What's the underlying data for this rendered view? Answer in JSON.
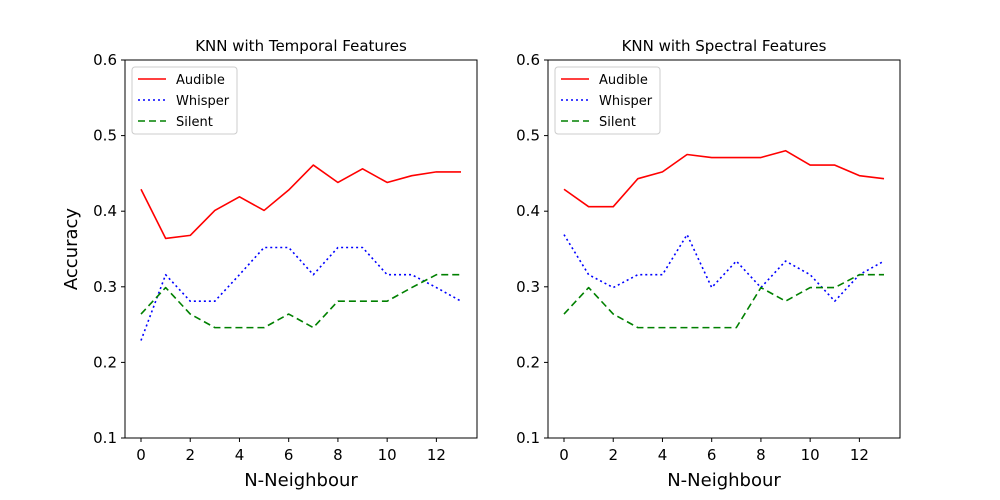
{
  "chart_data": [
    {
      "type": "line",
      "title": "KNN with Temporal Features",
      "xlabel": "N-Neighbour",
      "ylabel": "Accuracy",
      "xlim": [
        -0.65,
        13.65
      ],
      "ylim": [
        0.1,
        0.6
      ],
      "xticks": [
        0,
        2,
        4,
        6,
        8,
        10,
        12
      ],
      "xtick_labels": [
        "0",
        "2",
        "4",
        "6",
        "8",
        "10",
        "12"
      ],
      "yticks": [
        0.1,
        0.2,
        0.3,
        0.4,
        0.5,
        0.6
      ],
      "ytick_labels": [
        "0.1",
        "0.2",
        "0.3",
        "0.4",
        "0.5",
        "0.6"
      ],
      "grid": false,
      "legend_position": "top-left",
      "x": [
        0,
        1,
        2,
        3,
        4,
        5,
        6,
        7,
        8,
        9,
        10,
        11,
        12,
        13
      ],
      "series": [
        {
          "name": "Audible",
          "color": "#ff0000",
          "dash": "solid",
          "values": [
            0.429,
            0.364,
            0.368,
            0.401,
            0.419,
            0.401,
            0.428,
            0.461,
            0.438,
            0.456,
            0.438,
            0.447,
            0.452,
            0.452
          ]
        },
        {
          "name": "Whisper",
          "color": "#0000ff",
          "dash": "dotted",
          "values": [
            0.229,
            0.316,
            0.281,
            0.281,
            0.316,
            0.352,
            0.352,
            0.316,
            0.352,
            0.352,
            0.316,
            0.316,
            0.299,
            0.281
          ]
        },
        {
          "name": "Silent",
          "color": "#008000",
          "dash": "dashed",
          "values": [
            0.264,
            0.299,
            0.264,
            0.246,
            0.246,
            0.246,
            0.264,
            0.246,
            0.281,
            0.281,
            0.281,
            0.299,
            0.316,
            0.316
          ]
        }
      ]
    },
    {
      "type": "line",
      "title": "KNN with Spectral Features",
      "xlabel": "N-Neighbour",
      "ylabel": "",
      "xlim": [
        -0.65,
        13.65
      ],
      "ylim": [
        0.1,
        0.6
      ],
      "xticks": [
        0,
        2,
        4,
        6,
        8,
        10,
        12
      ],
      "xtick_labels": [
        "0",
        "2",
        "4",
        "6",
        "8",
        "10",
        "12"
      ],
      "yticks": [
        0.1,
        0.2,
        0.3,
        0.4,
        0.5,
        0.6
      ],
      "ytick_labels": [
        "0.1",
        "0.2",
        "0.3",
        "0.4",
        "0.5",
        "0.6"
      ],
      "grid": false,
      "legend_position": "top-left",
      "x": [
        0,
        1,
        2,
        3,
        4,
        5,
        6,
        7,
        8,
        9,
        10,
        11,
        12,
        13
      ],
      "series": [
        {
          "name": "Audible",
          "color": "#ff0000",
          "dash": "solid",
          "values": [
            0.429,
            0.406,
            0.406,
            0.443,
            0.452,
            0.475,
            0.471,
            0.471,
            0.471,
            0.48,
            0.461,
            0.461,
            0.447,
            0.443
          ]
        },
        {
          "name": "Whisper",
          "color": "#0000ff",
          "dash": "dotted",
          "values": [
            0.369,
            0.316,
            0.299,
            0.316,
            0.316,
            0.369,
            0.299,
            0.334,
            0.299,
            0.334,
            0.316,
            0.281,
            0.316,
            0.334
          ]
        },
        {
          "name": "Silent",
          "color": "#008000",
          "dash": "dashed",
          "values": [
            0.264,
            0.299,
            0.264,
            0.246,
            0.246,
            0.246,
            0.246,
            0.246,
            0.299,
            0.281,
            0.299,
            0.299,
            0.316,
            0.316
          ]
        }
      ]
    }
  ]
}
